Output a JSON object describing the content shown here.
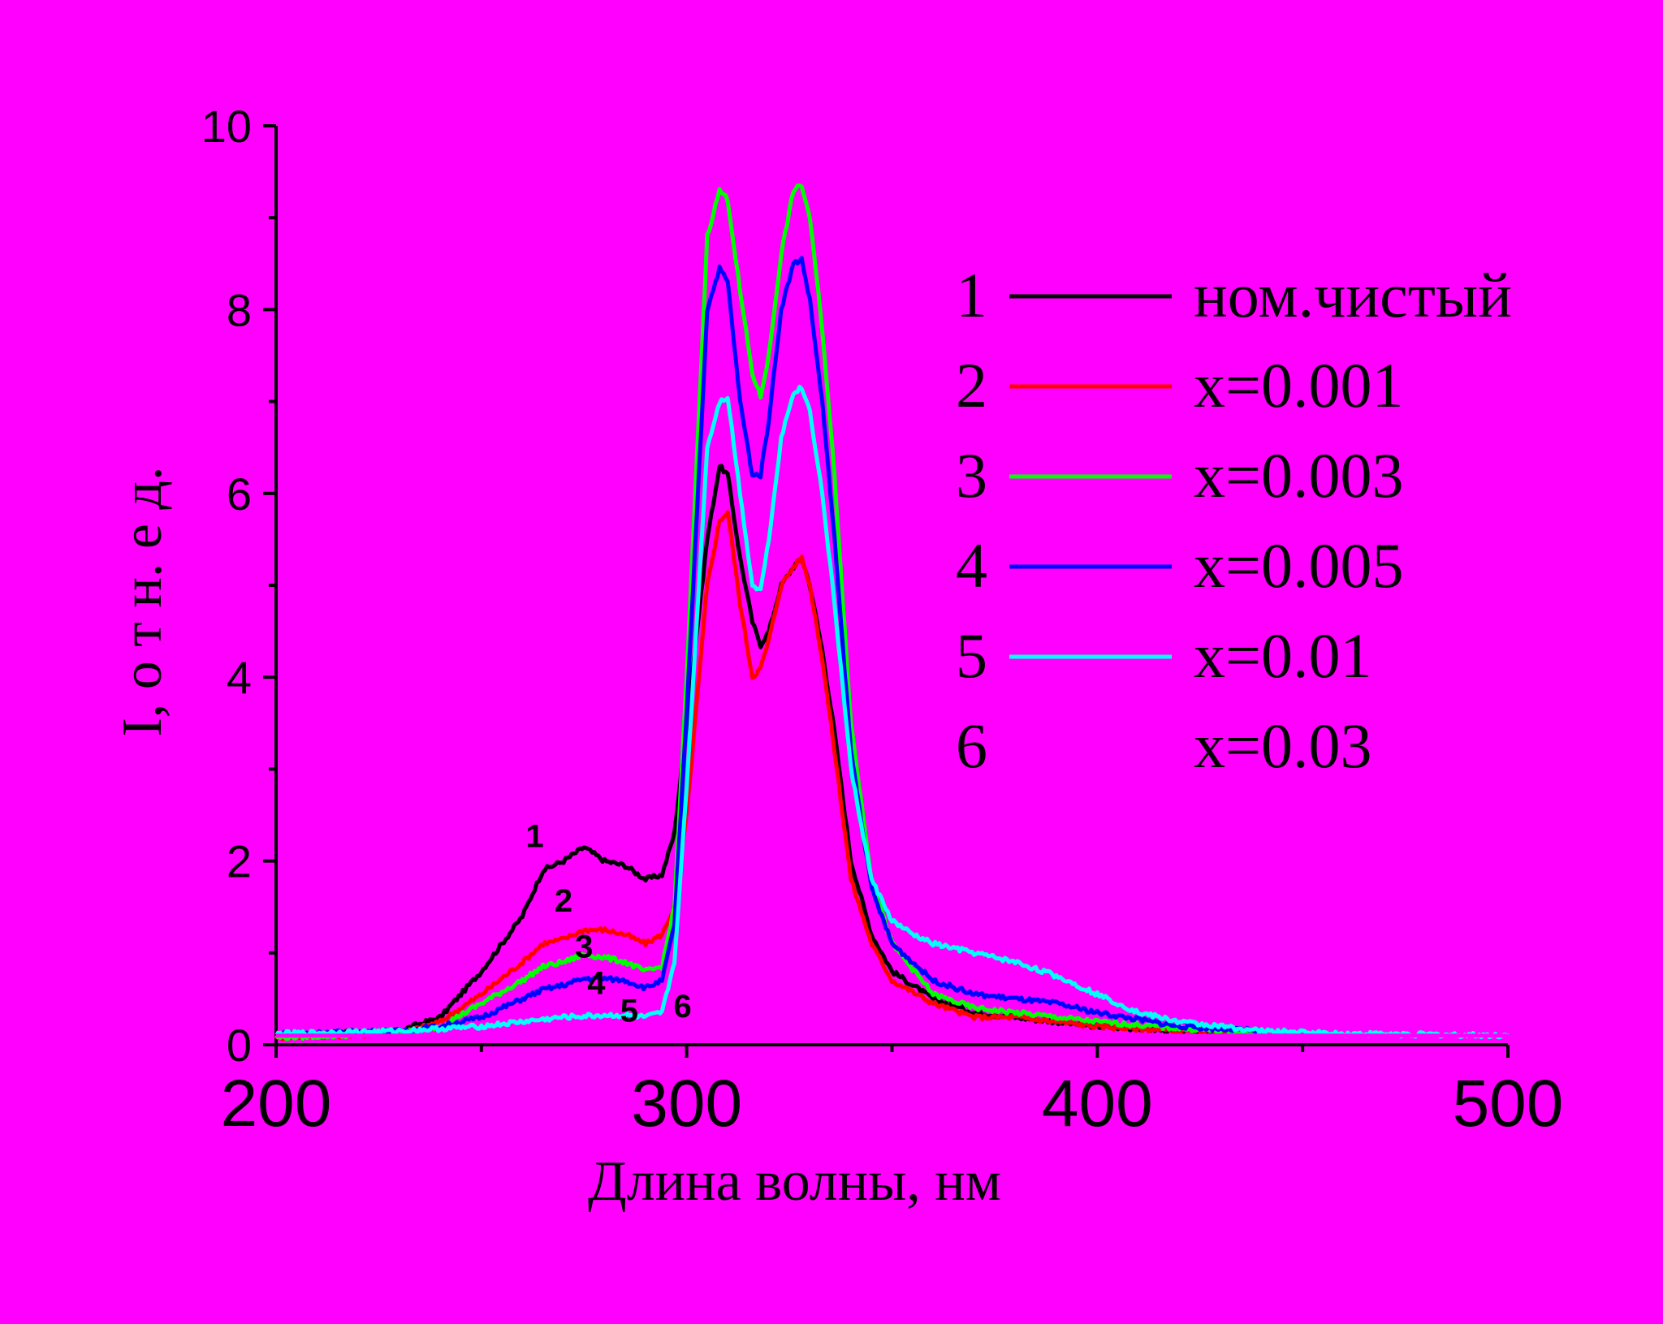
{
  "chart_data": {
    "type": "line",
    "title": "",
    "xlabel": "Длина волны, нм",
    "ylabel": "I, о т н. е д.",
    "xlim": [
      200,
      500
    ],
    "ylim": [
      0,
      10
    ],
    "xticks": [
      200,
      300,
      400,
      500
    ],
    "yticks": [
      0,
      2,
      4,
      6,
      8,
      10
    ],
    "legend_position": "top-right",
    "series": [
      {
        "name": "ном.чистый",
        "number": "1",
        "color": "#000000",
        "x": [
          200,
          230,
          240,
          250,
          260,
          265,
          270,
          275,
          280,
          285,
          290,
          294,
          297,
          300,
          305,
          308,
          310,
          313,
          316,
          318,
          320,
          323,
          326,
          328,
          330,
          333,
          336,
          340,
          345,
          350,
          360,
          370,
          380,
          400,
          420,
          440
        ],
        "y": [
          0.1,
          0.15,
          0.3,
          0.8,
          1.4,
          1.9,
          2.0,
          2.15,
          2.0,
          1.95,
          1.8,
          1.85,
          2.3,
          3.5,
          5.5,
          6.3,
          6.2,
          5.3,
          4.6,
          4.35,
          4.5,
          5.0,
          5.2,
          5.3,
          5.0,
          4.3,
          3.4,
          2.0,
          1.2,
          0.8,
          0.5,
          0.35,
          0.3,
          0.2,
          0.15,
          0.12
        ]
      },
      {
        "name": "x=0.001",
        "number": "2",
        "color": "#ff0000",
        "x": [
          200,
          230,
          240,
          250,
          260,
          265,
          270,
          275,
          280,
          285,
          290,
          294,
          297,
          300,
          305,
          308,
          310,
          313,
          316,
          318,
          320,
          323,
          326,
          328,
          330,
          333,
          336,
          340,
          345,
          350,
          360,
          370,
          380,
          400,
          420,
          440
        ],
        "y": [
          0.08,
          0.12,
          0.25,
          0.55,
          0.9,
          1.1,
          1.15,
          1.25,
          1.25,
          1.2,
          1.1,
          1.2,
          1.5,
          2.5,
          5.0,
          5.7,
          5.8,
          4.8,
          4.0,
          4.1,
          4.4,
          5.0,
          5.2,
          5.3,
          5.0,
          4.2,
          3.2,
          1.8,
          1.1,
          0.7,
          0.45,
          0.3,
          0.3,
          0.2,
          0.15,
          0.12
        ]
      },
      {
        "name": "x=0.003",
        "number": "3",
        "color": "#00ff00",
        "x": [
          200,
          230,
          240,
          250,
          260,
          265,
          270,
          275,
          280,
          285,
          290,
          294,
          297,
          300,
          305,
          308,
          310,
          313,
          316,
          318,
          320,
          323,
          326,
          328,
          330,
          333,
          336,
          340,
          345,
          350,
          360,
          370,
          380,
          400,
          420,
          440
        ],
        "y": [
          0.08,
          0.12,
          0.2,
          0.45,
          0.7,
          0.85,
          0.9,
          0.98,
          0.95,
          0.9,
          0.8,
          0.85,
          1.5,
          4.0,
          8.8,
          9.3,
          9.2,
          8.2,
          7.3,
          7.05,
          7.5,
          8.6,
          9.3,
          9.35,
          9.0,
          7.8,
          6.2,
          3.5,
          1.8,
          1.1,
          0.55,
          0.4,
          0.35,
          0.25,
          0.18,
          0.12
        ]
      },
      {
        "name": "x=0.005",
        "number": "4",
        "color": "#0000ff",
        "x": [
          200,
          230,
          240,
          250,
          260,
          265,
          270,
          275,
          280,
          285,
          290,
          294,
          297,
          300,
          305,
          308,
          310,
          313,
          316,
          318,
          320,
          323,
          326,
          328,
          330,
          333,
          336,
          340,
          345,
          350,
          360,
          370,
          380,
          390,
          400,
          420,
          440
        ],
        "y": [
          0.12,
          0.15,
          0.2,
          0.3,
          0.5,
          0.6,
          0.65,
          0.72,
          0.72,
          0.7,
          0.62,
          0.7,
          1.3,
          3.6,
          8.0,
          8.45,
          8.3,
          7.0,
          6.2,
          6.2,
          6.8,
          8.0,
          8.5,
          8.55,
          8.1,
          7.0,
          5.5,
          3.2,
          1.7,
          1.1,
          0.7,
          0.55,
          0.5,
          0.45,
          0.35,
          0.2,
          0.15
        ]
      },
      {
        "name": "x=0.01",
        "number": "5",
        "color": "#00ffff",
        "x": [
          200,
          230,
          250,
          260,
          270,
          280,
          285,
          290,
          294,
          297,
          300,
          305,
          308,
          310,
          313,
          316,
          318,
          320,
          323,
          326,
          328,
          330,
          333,
          336,
          340,
          345,
          350,
          355,
          360,
          370,
          380,
          390,
          400,
          410,
          420,
          440,
          460,
          500
        ],
        "y": [
          0.12,
          0.15,
          0.2,
          0.25,
          0.3,
          0.32,
          0.32,
          0.3,
          0.35,
          0.9,
          2.8,
          6.5,
          7.0,
          7.05,
          6.0,
          5.0,
          4.95,
          5.5,
          6.6,
          7.1,
          7.15,
          6.9,
          6.0,
          4.8,
          3.0,
          1.8,
          1.35,
          1.2,
          1.1,
          1.0,
          0.9,
          0.75,
          0.55,
          0.35,
          0.25,
          0.15,
          0.12,
          0.1
        ]
      },
      {
        "name": "x=0.03",
        "number": "6",
        "color": "#ff00ff",
        "x": [
          200,
          300,
          500
        ],
        "y": [
          0.1,
          0.1,
          0.1
        ]
      }
    ],
    "annotations": [
      {
        "text": "1",
        "x": 263,
        "y": 2.15
      },
      {
        "text": "2",
        "x": 270,
        "y": 1.45
      },
      {
        "text": "3",
        "x": 275,
        "y": 0.95
      },
      {
        "text": "4",
        "x": 278,
        "y": 0.55
      },
      {
        "text": "5",
        "x": 286,
        "y": 0.25
      },
      {
        "text": "6",
        "x": 299,
        "y": 0.3
      }
    ]
  }
}
